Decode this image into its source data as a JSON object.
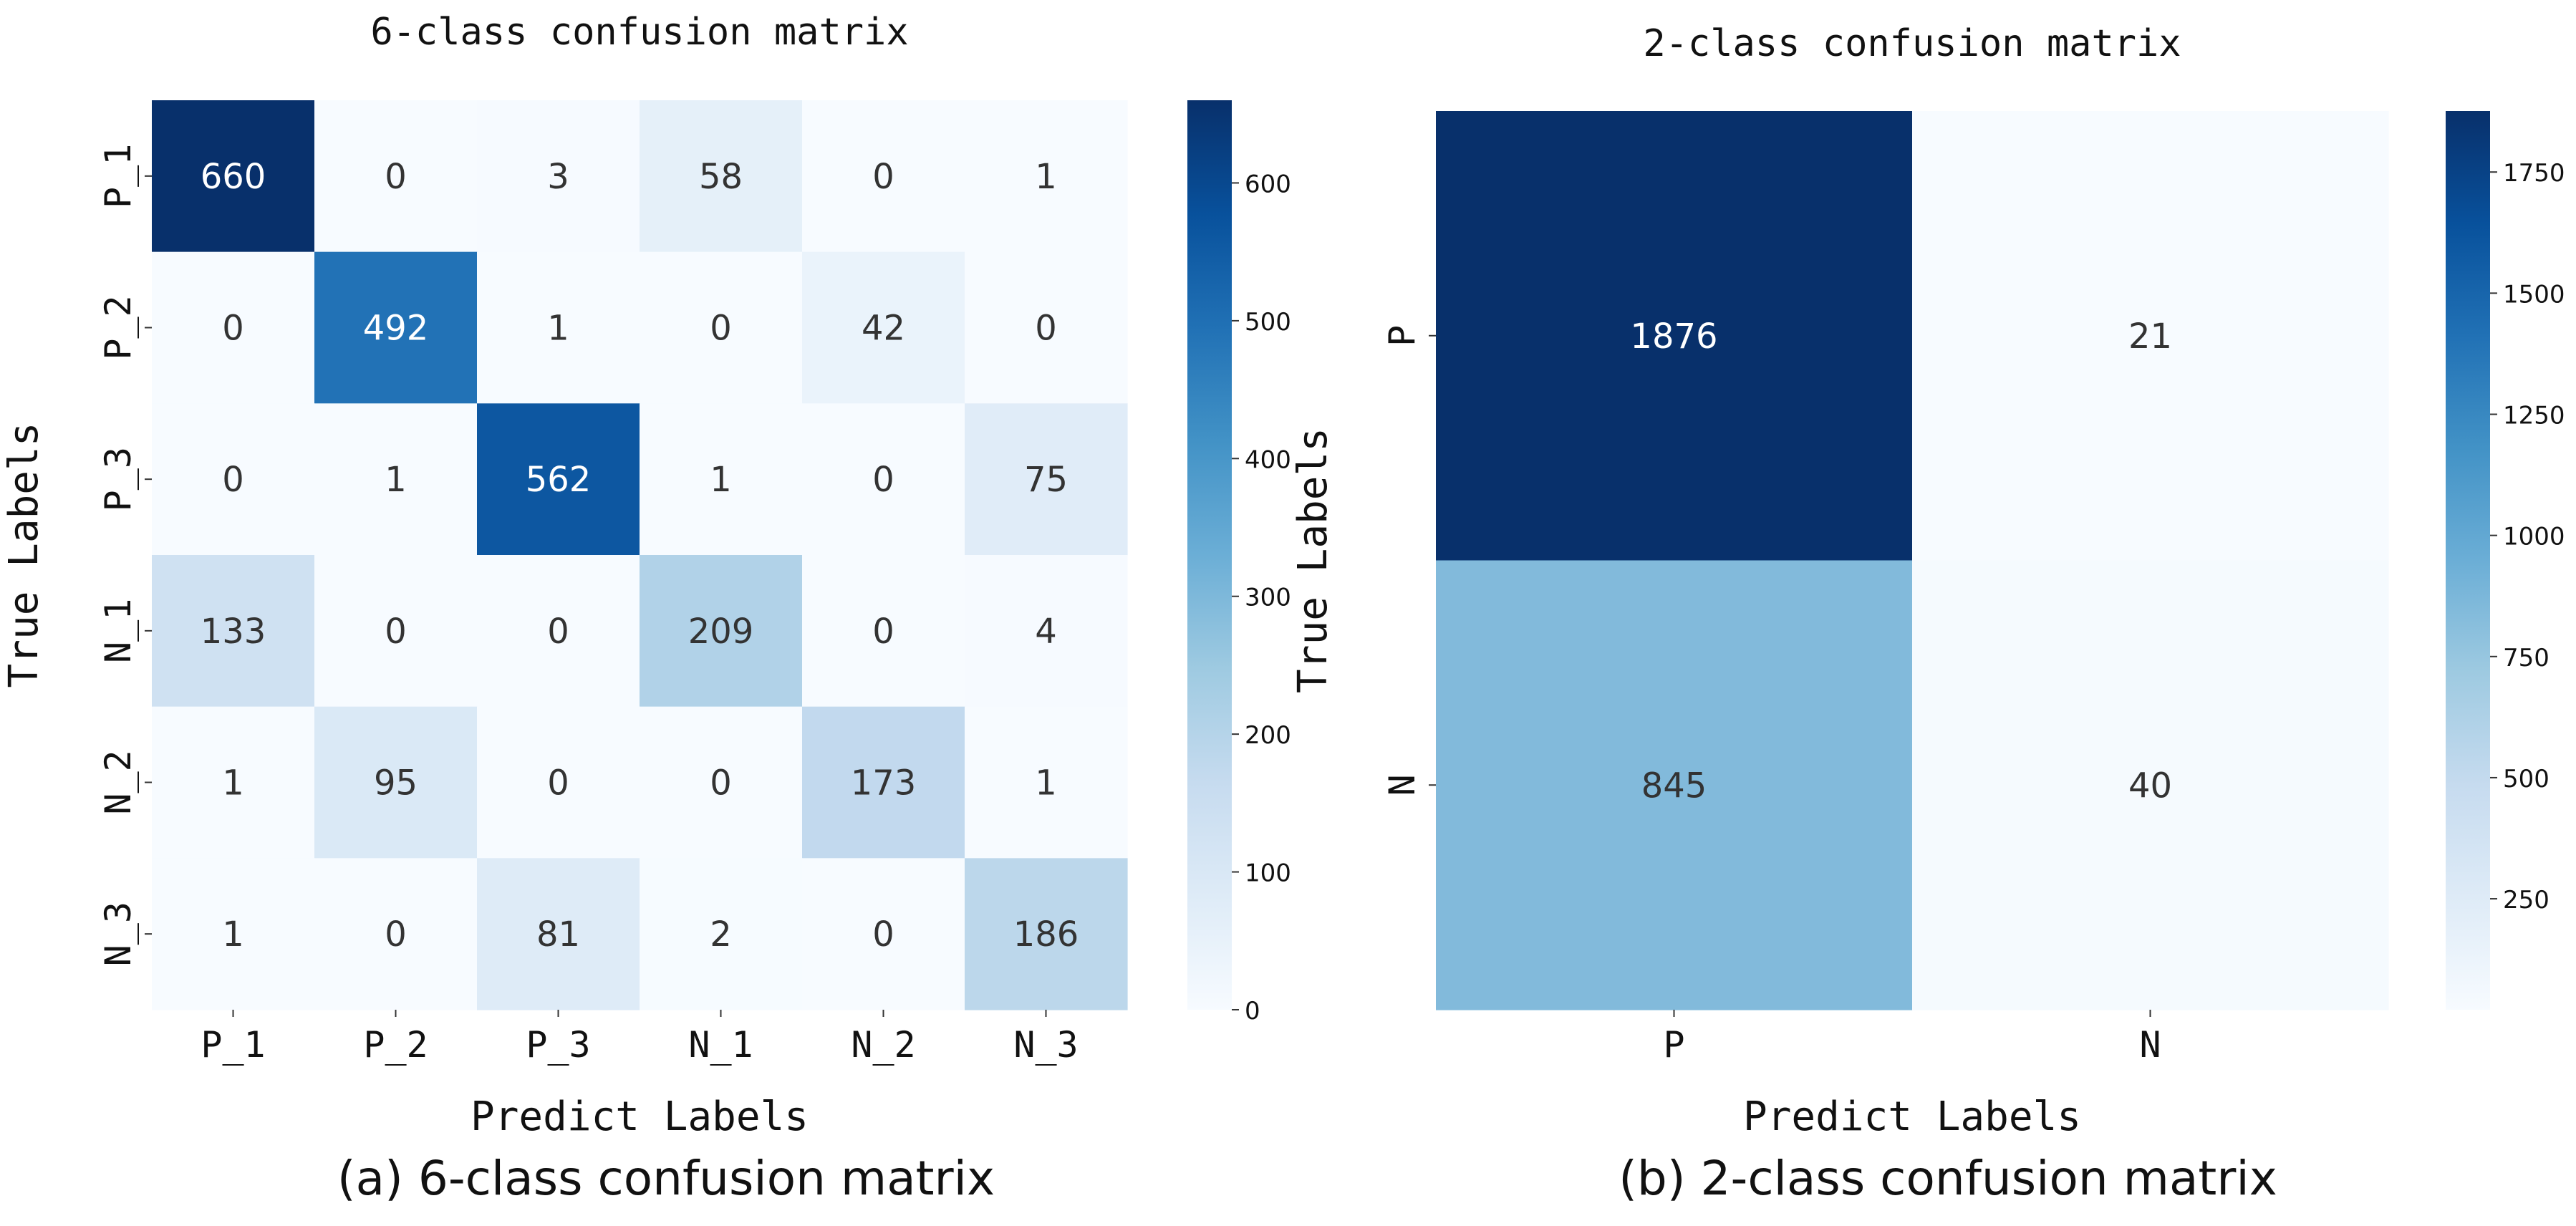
{
  "colors": {
    "low": "#f7fbff",
    "high": "#08306b",
    "text_dark": "#333333",
    "text_light": "#ffffff"
  },
  "captions": {
    "left": "(a) 6-class confusion matrix",
    "right": "(b) 2-class confusion matrix"
  },
  "chart_data": [
    {
      "type": "heatmap",
      "title": "6-class confusion matrix",
      "xlabel": "Predict Labels",
      "ylabel": "True Labels",
      "x_categories": [
        "P_1",
        "P_2",
        "P_3",
        "N_1",
        "N_2",
        "N_3"
      ],
      "y_categories": [
        "P_1",
        "P_2",
        "P_3",
        "N_1",
        "N_2",
        "N_3"
      ],
      "values": [
        [
          660,
          0,
          3,
          58,
          0,
          1
        ],
        [
          0,
          492,
          1,
          0,
          42,
          0
        ],
        [
          0,
          1,
          562,
          1,
          0,
          75
        ],
        [
          133,
          0,
          0,
          209,
          0,
          4
        ],
        [
          1,
          95,
          0,
          0,
          173,
          1
        ],
        [
          1,
          0,
          81,
          2,
          0,
          186
        ]
      ],
      "colorbar": {
        "min": 0,
        "max": 660,
        "ticks": [
          0,
          100,
          200,
          300,
          400,
          500,
          600
        ],
        "colormap": "Blues"
      }
    },
    {
      "type": "heatmap",
      "title": "2-class confusion matrix",
      "xlabel": "Predict Labels",
      "ylabel": "True Labels",
      "x_categories": [
        "P",
        "N"
      ],
      "y_categories": [
        "P",
        "N"
      ],
      "values": [
        [
          1876,
          21
        ],
        [
          845,
          40
        ]
      ],
      "colorbar": {
        "min": 21,
        "max": 1876,
        "ticks": [
          250,
          500,
          750,
          1000,
          1250,
          1500,
          1750
        ],
        "colormap": "Blues"
      }
    }
  ]
}
